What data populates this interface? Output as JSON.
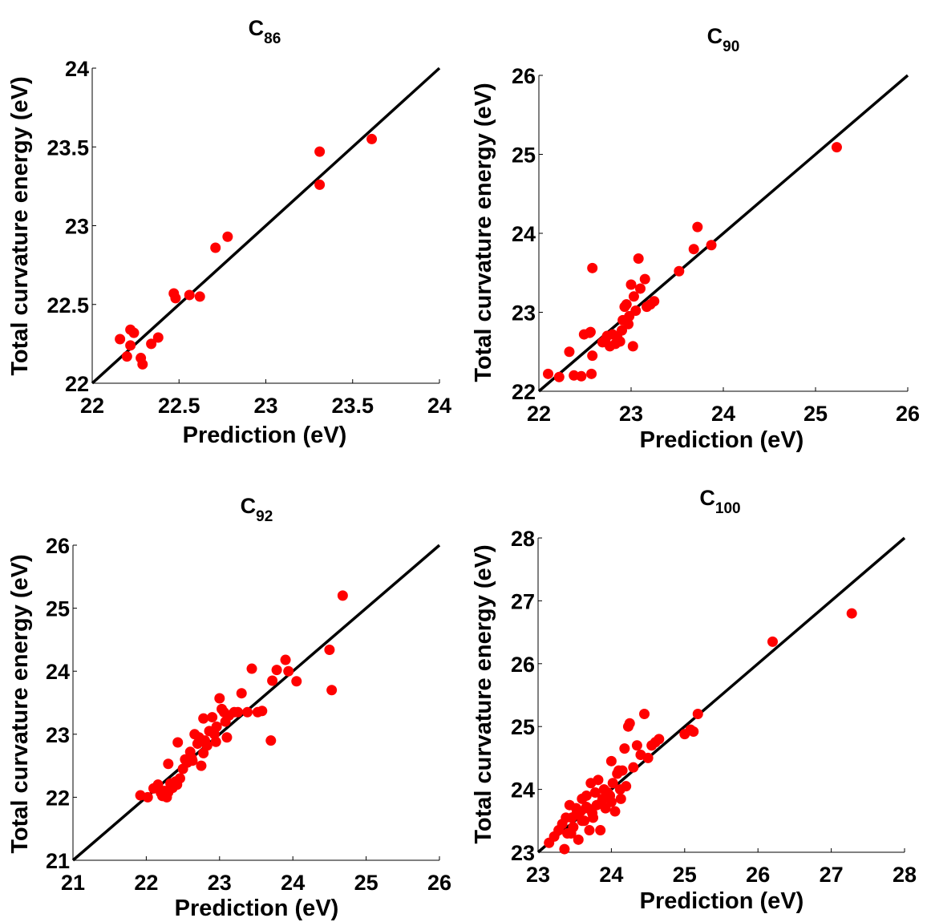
{
  "chart_data": [
    {
      "type": "scatter",
      "title": {
        "base": "C",
        "sub": "86"
      },
      "xlabel": "Prediction (eV)",
      "ylabel": "Total curvature energy (eV)",
      "xlim": [
        22,
        24
      ],
      "ylim": [
        22,
        24
      ],
      "xticks": [
        "22",
        "22.5",
        "23",
        "23.5",
        "24"
      ],
      "yticks": [
        "22",
        "22.5",
        "23",
        "23.5",
        "24"
      ],
      "reference_line": "y = x",
      "marker_color": "#ff0000",
      "line_color": "#000000",
      "grid": false,
      "x": [
        22.16,
        22.2,
        22.22,
        22.22,
        22.24,
        22.28,
        22.29,
        22.34,
        22.38,
        22.47,
        22.48,
        22.56,
        22.62,
        22.71,
        22.78,
        23.31,
        23.31,
        23.61
      ],
      "y": [
        22.28,
        22.17,
        22.24,
        22.34,
        22.32,
        22.16,
        22.12,
        22.25,
        22.29,
        22.57,
        22.54,
        22.56,
        22.55,
        22.86,
        22.93,
        23.47,
        23.26,
        23.55
      ]
    },
    {
      "type": "scatter",
      "title": {
        "base": "C",
        "sub": "90"
      },
      "xlabel": "Prediction (eV)",
      "ylabel": "Total curvature energy (eV)",
      "xlim": [
        22,
        26
      ],
      "ylim": [
        22,
        26
      ],
      "xticks": [
        "22",
        "23",
        "24",
        "25",
        "26"
      ],
      "yticks": [
        "22",
        "23",
        "24",
        "25",
        "26"
      ],
      "reference_line": "y = x",
      "marker_color": "#ff0000",
      "line_color": "#000000",
      "grid": false,
      "x": [
        22.1,
        22.22,
        22.33,
        22.38,
        22.46,
        22.49,
        22.55,
        22.57,
        22.58,
        22.58,
        22.69,
        22.72,
        22.77,
        22.8,
        22.83,
        22.85,
        22.88,
        22.9,
        22.91,
        22.93,
        22.95,
        22.98,
        23.0,
        23.02,
        23.03,
        23.05,
        23.08,
        23.1,
        23.15,
        23.17,
        23.21,
        23.25,
        23.52,
        23.68,
        23.72,
        23.87,
        25.23,
        22.56,
        22.74,
        22.97
      ],
      "y": [
        22.22,
        22.18,
        22.5,
        22.2,
        22.19,
        22.72,
        22.74,
        22.22,
        23.56,
        22.45,
        22.62,
        22.65,
        22.57,
        22.72,
        22.6,
        22.68,
        22.63,
        22.77,
        22.9,
        23.07,
        23.1,
        22.95,
        23.35,
        22.57,
        23.2,
        23.02,
        23.68,
        23.3,
        23.42,
        23.07,
        23.1,
        23.14,
        23.52,
        23.8,
        24.08,
        23.85,
        25.09,
        22.75,
        22.7,
        22.85
      ]
    },
    {
      "type": "scatter",
      "title": {
        "base": "C",
        "sub": "92"
      },
      "xlabel": "Prediction (eV)",
      "ylabel": "Total curvature energy (eV)",
      "xlim": [
        21,
        26
      ],
      "ylim": [
        21,
        26
      ],
      "xticks": [
        "21",
        "22",
        "23",
        "24",
        "25",
        "26"
      ],
      "yticks": [
        "21",
        "22",
        "23",
        "24",
        "25",
        "26"
      ],
      "reference_line": "y = x",
      "marker_color": "#ff0000",
      "line_color": "#000000",
      "grid": false,
      "x": [
        21.92,
        22.02,
        22.1,
        22.16,
        22.2,
        22.22,
        22.25,
        22.28,
        22.3,
        22.33,
        22.36,
        22.4,
        22.43,
        22.46,
        22.5,
        22.53,
        22.56,
        22.6,
        22.63,
        22.66,
        22.7,
        22.72,
        22.75,
        22.78,
        22.8,
        22.83,
        22.86,
        22.9,
        22.93,
        22.96,
        23.0,
        23.03,
        23.06,
        23.1,
        23.13,
        23.2,
        23.25,
        23.3,
        23.38,
        23.44,
        23.52,
        23.58,
        23.7,
        23.72,
        23.78,
        23.9,
        23.94,
        24.05,
        24.5,
        24.53,
        24.68,
        22.3,
        22.42,
        22.62,
        22.78,
        22.95,
        23.08
      ],
      "y": [
        22.03,
        22.0,
        22.14,
        22.2,
        22.07,
        22.02,
        22.1,
        22.0,
        22.53,
        22.22,
        22.15,
        22.25,
        22.87,
        22.3,
        22.45,
        22.6,
        22.55,
        22.72,
        22.58,
        23.0,
        22.85,
        22.95,
        22.5,
        23.25,
        22.9,
        22.82,
        23.05,
        23.27,
        23.0,
        23.12,
        23.57,
        23.4,
        23.35,
        22.95,
        23.3,
        23.35,
        23.35,
        23.65,
        23.35,
        24.04,
        23.35,
        23.37,
        22.9,
        23.85,
        24.02,
        24.18,
        24.0,
        23.84,
        24.34,
        23.7,
        25.2,
        22.08,
        22.2,
        22.62,
        22.7,
        22.88,
        23.2
      ]
    },
    {
      "type": "scatter",
      "title": {
        "base": "C",
        "sub": "100"
      },
      "xlabel": "Prediction (eV)",
      "ylabel": "Total curvature energy (eV)",
      "xlim": [
        23,
        28
      ],
      "ylim": [
        23,
        28
      ],
      "xticks": [
        "23",
        "24",
        "25",
        "26",
        "27",
        "28"
      ],
      "yticks": [
        "23",
        "24",
        "25",
        "26",
        "27",
        "28"
      ],
      "reference_line": "y = x",
      "marker_color": "#ff0000",
      "line_color": "#000000",
      "grid": false,
      "x": [
        23.15,
        23.22,
        23.28,
        23.33,
        23.36,
        23.4,
        23.43,
        23.46,
        23.48,
        23.52,
        23.55,
        23.58,
        23.6,
        23.63,
        23.66,
        23.68,
        23.7,
        23.72,
        23.75,
        23.78,
        23.8,
        23.82,
        23.85,
        23.88,
        23.9,
        23.92,
        23.95,
        23.98,
        24.0,
        24.02,
        24.05,
        24.08,
        24.1,
        24.13,
        24.15,
        24.18,
        24.2,
        24.23,
        24.25,
        24.3,
        24.35,
        24.4,
        24.45,
        24.5,
        24.55,
        24.6,
        24.65,
        25.0,
        25.08,
        25.12,
        25.18,
        26.2,
        27.28,
        23.45,
        23.6,
        23.74,
        23.86,
        24.0,
        24.12,
        23.38,
        23.52,
        23.66
      ],
      "y": [
        23.15,
        23.25,
        23.35,
        23.45,
        23.05,
        23.3,
        23.75,
        23.55,
        23.4,
        23.6,
        23.2,
        23.65,
        23.85,
        23.5,
        23.9,
        23.7,
        23.35,
        24.1,
        23.55,
        23.95,
        23.75,
        24.15,
        23.35,
        23.85,
        24.0,
        23.7,
        23.95,
        23.9,
        24.45,
        24.1,
        23.65,
        24.25,
        24.3,
        23.85,
        24.3,
        24.65,
        24.05,
        25.0,
        25.05,
        24.35,
        24.7,
        24.55,
        25.2,
        24.5,
        24.7,
        24.75,
        24.8,
        24.88,
        24.95,
        24.92,
        25.2,
        26.35,
        26.8,
        23.3,
        23.5,
        23.62,
        23.78,
        23.8,
        24.0,
        23.55,
        23.7,
        23.72
      ]
    }
  ]
}
